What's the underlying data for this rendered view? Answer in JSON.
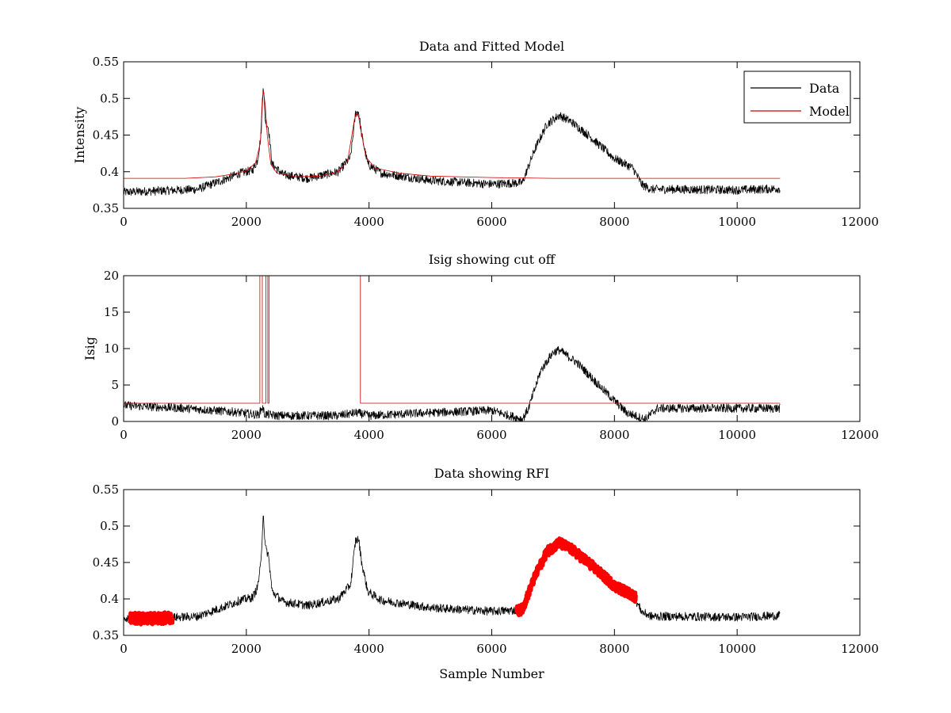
{
  "chart_data": [
    {
      "type": "line",
      "title": "Data and Fitted Model",
      "xlabel": "",
      "ylabel": "Intensity",
      "xlim": [
        0,
        12000
      ],
      "ylim": [
        0.35,
        0.55
      ],
      "xticks": [
        0,
        2000,
        4000,
        6000,
        8000,
        10000,
        12000
      ],
      "yticks": [
        0.35,
        0.4,
        0.45,
        0.5,
        0.55
      ],
      "xtick_labels": [
        "0",
        "2000",
        "4000",
        "6000",
        "8000",
        "10000",
        "12000"
      ],
      "ytick_labels": [
        "0.35",
        "0.4",
        "0.45",
        "0.5",
        "0.55"
      ],
      "grid": false,
      "legend": {
        "placement": "top-right",
        "entries": [
          "Data",
          "Model"
        ]
      },
      "series": [
        {
          "name": "Data",
          "color": "#000000",
          "noise": 0.006,
          "x": [
            0,
            1200,
            1600,
            1900,
            2100,
            2180,
            2240,
            2275,
            2310,
            2360,
            2420,
            2600,
            3000,
            3500,
            3700,
            3780,
            3830,
            3880,
            3980,
            4200,
            5000,
            6000,
            6500,
            6700,
            6900,
            7100,
            7300,
            7600,
            8000,
            8300,
            8450,
            8600,
            9000,
            10000,
            10700
          ],
          "y": [
            0.372,
            0.376,
            0.388,
            0.398,
            0.402,
            0.415,
            0.45,
            0.52,
            0.47,
            0.46,
            0.41,
            0.396,
            0.391,
            0.4,
            0.42,
            0.48,
            0.482,
            0.45,
            0.41,
            0.398,
            0.388,
            0.383,
            0.385,
            0.43,
            0.465,
            0.477,
            0.468,
            0.448,
            0.418,
            0.405,
            0.382,
            0.376,
            0.376,
            0.375,
            0.377
          ]
        },
        {
          "name": "Model",
          "color": "#cc0000",
          "noise": 0,
          "x": [
            0,
            1000,
            1500,
            1800,
            2000,
            2150,
            2230,
            2260,
            2280,
            2310,
            2340,
            2400,
            2500,
            2800,
            3200,
            3500,
            3650,
            3760,
            3790,
            3830,
            3870,
            3950,
            4100,
            4500,
            5000,
            6000,
            7000,
            8000,
            10700
          ],
          "y": [
            0.391,
            0.391,
            0.393,
            0.397,
            0.401,
            0.412,
            0.44,
            0.5,
            0.51,
            0.49,
            0.45,
            0.41,
            0.398,
            0.393,
            0.394,
            0.4,
            0.415,
            0.47,
            0.48,
            0.475,
            0.455,
            0.42,
            0.405,
            0.398,
            0.394,
            0.392,
            0.391,
            0.391,
            0.391
          ]
        }
      ]
    },
    {
      "type": "line",
      "title": "Isig showing cut off",
      "xlabel": "",
      "ylabel": "Isig",
      "xlim": [
        0,
        12000
      ],
      "ylim": [
        0,
        20
      ],
      "xticks": [
        0,
        2000,
        4000,
        6000,
        8000,
        10000,
        12000
      ],
      "yticks": [
        0,
        5,
        10,
        15,
        20
      ],
      "xtick_labels": [
        "0",
        "2000",
        "4000",
        "6000",
        "8000",
        "10000",
        "12000"
      ],
      "ytick_labels": [
        "0",
        "5",
        "10",
        "15",
        "20"
      ],
      "grid": false,
      "series": [
        {
          "color": "#000000",
          "noise": 0.6,
          "x": [
            0,
            1000,
            1800,
            2200,
            2260,
            2300,
            2500,
            3500,
            3800,
            4000,
            5000,
            6000,
            6500,
            6600,
            6800,
            7000,
            7100,
            7400,
            7800,
            8200,
            8500,
            8700,
            9000,
            10000,
            10700
          ],
          "y": [
            2.2,
            1.8,
            1.3,
            0.9,
            2.0,
            1.0,
            0.8,
            0.8,
            1.2,
            0.8,
            1.2,
            1.5,
            0.3,
            1.8,
            7.0,
            9.5,
            9.8,
            8.0,
            4.5,
            1.2,
            0.3,
            1.8,
            1.8,
            1.8,
            1.8
          ]
        },
        {
          "color": "#cc0000",
          "noise": 0,
          "x": [
            0,
            2220,
            2220,
            2260,
            2260,
            2320,
            2320,
            2350,
            2350,
            2370,
            2370,
            3720,
            3720,
            3860,
            3860,
            10700
          ],
          "y": [
            2.5,
            2.5,
            20,
            20,
            2.5,
            2.5,
            20,
            20,
            2.5,
            2.5,
            20,
            20,
            20,
            20,
            2.5,
            2.5
          ]
        }
      ]
    },
    {
      "type": "line",
      "title": "Data showing RFI",
      "xlabel": "Sample Number",
      "ylabel": "",
      "xlim": [
        0,
        12000
      ],
      "ylim": [
        0.35,
        0.55
      ],
      "xticks": [
        0,
        2000,
        4000,
        6000,
        8000,
        10000,
        12000
      ],
      "yticks": [
        0.35,
        0.4,
        0.45,
        0.5,
        0.55
      ],
      "xtick_labels": [
        "0",
        "2000",
        "4000",
        "6000",
        "8000",
        "10000",
        "12000"
      ],
      "ytick_labels": [
        "0.35",
        "0.4",
        "0.45",
        "0.5",
        "0.55"
      ],
      "grid": false,
      "series": [
        {
          "color": "#000000",
          "noise": 0.006,
          "x": [
            0,
            1200,
            1600,
            1900,
            2100,
            2180,
            2240,
            2275,
            2310,
            2360,
            2420,
            2600,
            3000,
            3500,
            3700,
            3780,
            3830,
            3880,
            3980,
            4200,
            5000,
            6000,
            6500,
            6700,
            6900,
            7100,
            7300,
            7600,
            8000,
            8300,
            8450,
            8600,
            9000,
            10000,
            10700
          ],
          "y": [
            0.372,
            0.376,
            0.388,
            0.398,
            0.402,
            0.415,
            0.45,
            0.52,
            0.47,
            0.46,
            0.41,
            0.396,
            0.391,
            0.4,
            0.42,
            0.48,
            0.482,
            0.45,
            0.41,
            0.398,
            0.388,
            0.383,
            0.385,
            0.43,
            0.465,
            0.477,
            0.468,
            0.448,
            0.418,
            0.405,
            0.382,
            0.376,
            0.376,
            0.375,
            0.377
          ]
        },
        {
          "color": "#ff0000",
          "noise": 0.008,
          "thick": true,
          "x": [
            100,
            400,
            800
          ],
          "y": [
            0.373,
            0.373,
            0.374
          ]
        },
        {
          "color": "#ff0000",
          "noise": 0.007,
          "thick": true,
          "x": [
            6400,
            6500,
            6700,
            6900,
            7100,
            7300,
            7600,
            8000,
            8300,
            8350
          ],
          "y": [
            0.383,
            0.386,
            0.43,
            0.465,
            0.477,
            0.468,
            0.448,
            0.418,
            0.405,
            0.402
          ]
        }
      ]
    }
  ]
}
